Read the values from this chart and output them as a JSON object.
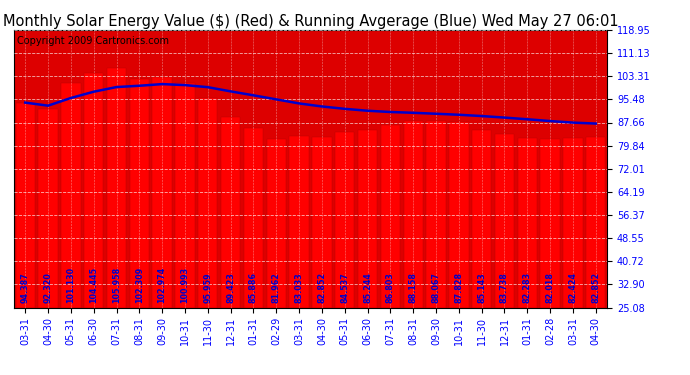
{
  "title": "Monthly Solar Energy Value ($) (Red) & Running Avgerage (Blue) Wed May 27 06:01",
  "copyright": "Copyright 2009 Cartronics.com",
  "categories": [
    "03-31",
    "04-30",
    "05-31",
    "06-30",
    "07-31",
    "08-31",
    "09-30",
    "10-31",
    "11-30",
    "12-31",
    "01-31",
    "02-29",
    "03-31",
    "04-30",
    "05-31",
    "06-30",
    "07-31",
    "08-31",
    "09-30",
    "10-31",
    "11-30",
    "12-31",
    "01-31",
    "02-28",
    "03-31",
    "04-30"
  ],
  "bar_values": [
    94.387,
    92.32,
    101.13,
    104.445,
    105.958,
    102.309,
    102.974,
    100.993,
    95.959,
    89.423,
    85.886,
    81.962,
    83.033,
    82.852,
    84.537,
    85.244,
    86.803,
    88.158,
    88.067,
    87.828,
    85.143,
    83.738,
    82.283,
    82.018,
    82.424,
    82.852
  ],
  "running_avg": [
    94.387,
    93.354,
    95.946,
    98.071,
    99.648,
    100.092,
    100.646,
    100.315,
    99.609,
    98.19,
    96.853,
    95.486,
    94.108,
    93.083,
    92.28,
    91.635,
    91.213,
    90.944,
    90.62,
    90.276,
    89.844,
    89.323,
    88.757,
    88.148,
    87.622,
    87.3
  ],
  "ylim": [
    25.08,
    118.95
  ],
  "yticks": [
    25.08,
    32.9,
    40.72,
    48.55,
    56.37,
    64.19,
    72.01,
    79.84,
    87.66,
    95.48,
    103.31,
    111.13,
    118.95
  ],
  "bar_color": "#ff0000",
  "line_color": "#0000cc",
  "label_color": "#0000cc",
  "grid_color": "#888888",
  "title_fontsize": 10.5,
  "copyright_fontsize": 7,
  "tick_fontsize": 7,
  "value_fontsize": 5.8
}
